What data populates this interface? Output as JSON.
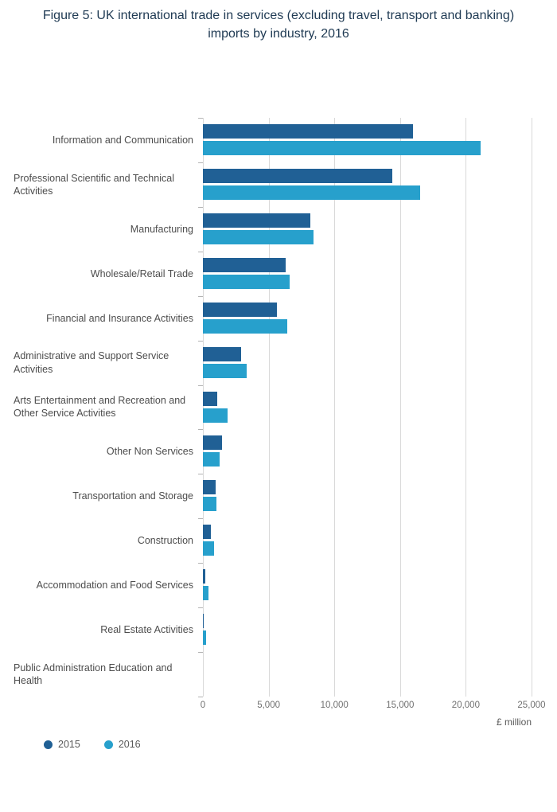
{
  "title": "Figure 5: UK international trade in services (excluding travel, transport and banking) imports by industry, 2016",
  "xaxis_title": "£ million",
  "chart_data": {
    "type": "bar",
    "orientation": "horizontal",
    "title": "Figure 5: UK international trade in services (excluding travel, transport and banking) imports by industry, 2016",
    "xlabel": "£ million",
    "ylabel": "",
    "xlim": [
      0,
      25000
    ],
    "xticks": [
      0,
      5000,
      10000,
      15000,
      20000,
      25000
    ],
    "xtick_labels": [
      "0",
      "5,000",
      "10,000",
      "15,000",
      "20,000",
      "25,000"
    ],
    "grid": true,
    "legend_position": "bottom-left",
    "categories": [
      [
        "Information and Communication"
      ],
      [
        "Professional Scientific and Technical",
        "Activities"
      ],
      [
        "Manufacturing"
      ],
      [
        "Wholesale/Retail Trade"
      ],
      [
        "Financial and Insurance Activities"
      ],
      [
        "Administrative and Support Service",
        "Activities"
      ],
      [
        "Arts Entertainment and Recreation and",
        "Other Service Activities"
      ],
      [
        "Other Non Services"
      ],
      [
        "Transportation and Storage"
      ],
      [
        "Construction"
      ],
      [
        "Accommodation and Food Services"
      ],
      [
        "Real Estate Activities"
      ],
      [
        "Public Administration Education and",
        "Health"
      ]
    ],
    "series": [
      {
        "name": "2015",
        "color": "#206095",
        "values": [
          16000,
          14400,
          8200,
          6300,
          5600,
          2900,
          1100,
          1450,
          950,
          600,
          200,
          50,
          0
        ]
      },
      {
        "name": "2016",
        "color": "#27a0cc",
        "values": [
          21100,
          16500,
          8400,
          6600,
          6400,
          3300,
          1900,
          1300,
          1000,
          850,
          400,
          250,
          0
        ]
      }
    ]
  }
}
